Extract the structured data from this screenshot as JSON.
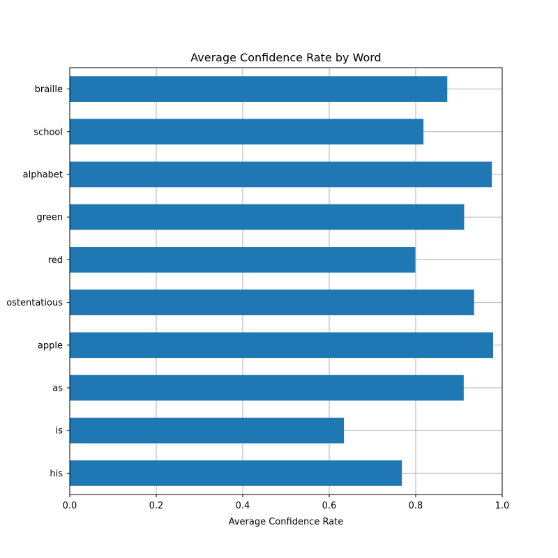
{
  "chart_data": {
    "type": "bar",
    "orientation": "horizontal",
    "title": "Average Confidence Rate by Word",
    "xlabel": "Average Confidence Rate",
    "ylabel": "",
    "xlim": [
      0.0,
      1.0
    ],
    "xticks": [
      "0.0",
      "0.2",
      "0.4",
      "0.6",
      "0.8",
      "1.0"
    ],
    "categories": [
      "braille",
      "school",
      "alphabet",
      "green",
      "red",
      "ostentatious",
      "apple",
      "as",
      "is",
      "his"
    ],
    "values": [
      0.873,
      0.818,
      0.976,
      0.912,
      0.799,
      0.935,
      0.979,
      0.911,
      0.634,
      0.768
    ],
    "grid": true,
    "bar_color": "#1f77b4",
    "grid_color": "#b0b0b0"
  }
}
